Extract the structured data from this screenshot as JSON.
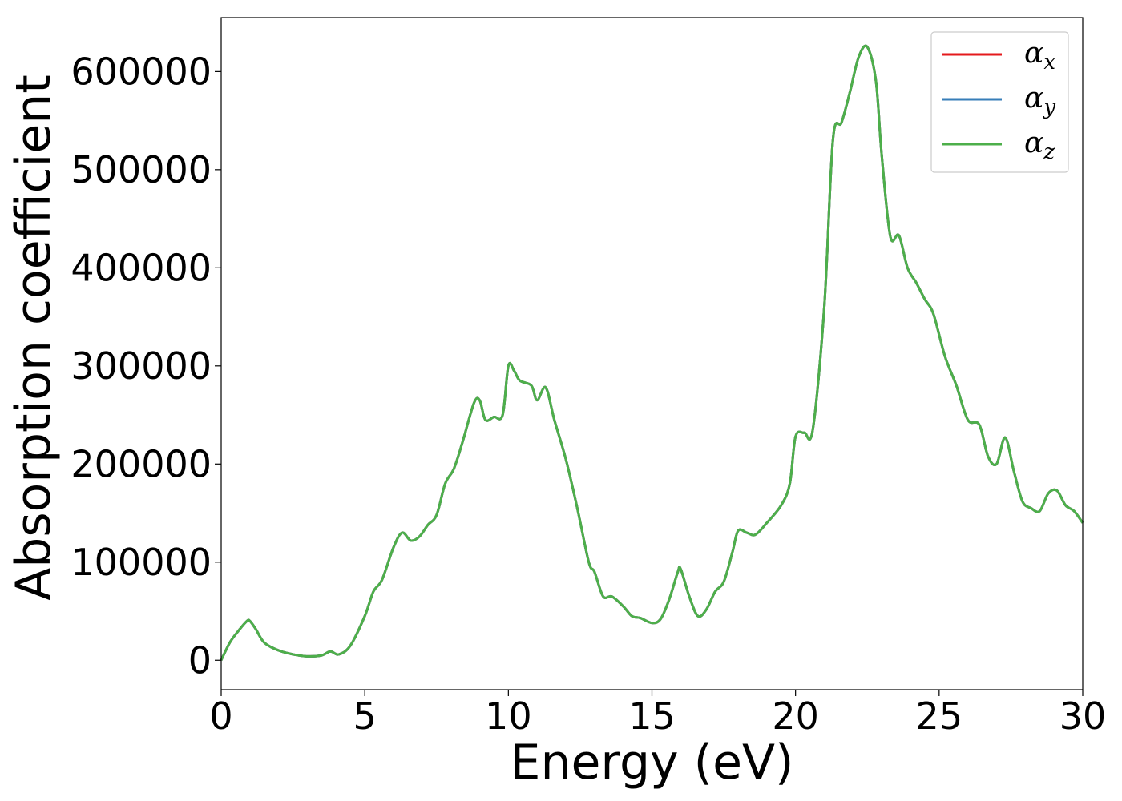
{
  "chart_data": {
    "type": "line",
    "title": "",
    "xlabel": "Energy (eV)",
    "ylabel": "Absorption coefficient",
    "xlim": [
      0,
      30
    ],
    "ylim": [
      -30000,
      655000
    ],
    "xticks": [
      0,
      5,
      10,
      15,
      20,
      25,
      30
    ],
    "yticks": [
      0,
      100000,
      200000,
      300000,
      400000,
      500000,
      600000
    ],
    "grid": false,
    "legend_position": "top-right",
    "x": [
      0,
      0.3,
      0.6,
      0.9,
      1.0,
      1.2,
      1.5,
      2.0,
      2.5,
      3.0,
      3.5,
      3.8,
      4.1,
      4.5,
      5.0,
      5.3,
      5.6,
      6.0,
      6.3,
      6.6,
      6.9,
      7.2,
      7.5,
      7.8,
      8.1,
      8.4,
      8.8,
      9.0,
      9.2,
      9.5,
      9.8,
      10.0,
      10.2,
      10.4,
      10.8,
      11.0,
      11.3,
      11.6,
      12.0,
      12.4,
      12.8,
      13.0,
      13.3,
      13.6,
      14.0,
      14.3,
      14.6,
      15.0,
      15.3,
      15.6,
      15.9,
      16.0,
      16.3,
      16.6,
      16.9,
      17.2,
      17.5,
      17.8,
      18.0,
      18.3,
      18.6,
      19.0,
      19.5,
      19.8,
      20.0,
      20.3,
      20.6,
      21.0,
      21.3,
      21.6,
      21.9,
      22.2,
      22.5,
      22.8,
      23.0,
      23.3,
      23.6,
      23.9,
      24.2,
      24.5,
      24.8,
      25.2,
      25.6,
      26.0,
      26.4,
      26.7,
      27.0,
      27.3,
      27.6,
      27.9,
      28.2,
      28.5,
      28.8,
      29.1,
      29.4,
      29.7,
      30.0
    ],
    "series": [
      {
        "name": "α_x",
        "color": "#e41a1c",
        "values": [
          0,
          18000,
          30000,
          40000,
          40000,
          32000,
          18000,
          10000,
          6000,
          4000,
          5000,
          9000,
          6000,
          15000,
          45000,
          70000,
          82000,
          115000,
          130000,
          122000,
          126000,
          138000,
          148000,
          180000,
          195000,
          222000,
          262000,
          265000,
          245000,
          248000,
          250000,
          300000,
          295000,
          285000,
          280000,
          265000,
          278000,
          245000,
          205000,
          155000,
          100000,
          90000,
          65000,
          65000,
          55000,
          45000,
          43000,
          38000,
          42000,
          62000,
          90000,
          93000,
          65000,
          45000,
          52000,
          70000,
          80000,
          110000,
          132000,
          130000,
          128000,
          140000,
          158000,
          180000,
          228000,
          232000,
          235000,
          360000,
          530000,
          548000,
          580000,
          615000,
          625000,
          590000,
          515000,
          432000,
          433000,
          400000,
          385000,
          368000,
          353000,
          310000,
          280000,
          245000,
          240000,
          208000,
          200000,
          227000,
          193000,
          162000,
          155000,
          152000,
          170000,
          173000,
          158000,
          152000,
          140000
        ]
      },
      {
        "name": "α_y",
        "color": "#377eb8",
        "values": [
          0,
          18000,
          30000,
          40000,
          40000,
          32000,
          18000,
          10000,
          6000,
          4000,
          5000,
          9000,
          6000,
          15000,
          45000,
          70000,
          82000,
          115000,
          130000,
          122000,
          126000,
          138000,
          148000,
          180000,
          195000,
          222000,
          262000,
          265000,
          245000,
          248000,
          250000,
          300000,
          295000,
          285000,
          280000,
          265000,
          278000,
          245000,
          205000,
          155000,
          100000,
          90000,
          65000,
          65000,
          55000,
          45000,
          43000,
          38000,
          42000,
          62000,
          90000,
          93000,
          65000,
          45000,
          52000,
          70000,
          80000,
          110000,
          132000,
          130000,
          128000,
          140000,
          158000,
          180000,
          228000,
          232000,
          235000,
          360000,
          530000,
          548000,
          580000,
          615000,
          625000,
          590000,
          515000,
          432000,
          433000,
          400000,
          385000,
          368000,
          353000,
          310000,
          280000,
          245000,
          240000,
          208000,
          200000,
          227000,
          193000,
          162000,
          155000,
          152000,
          170000,
          173000,
          158000,
          152000,
          140000
        ]
      },
      {
        "name": "α_z",
        "color": "#4daf4a",
        "values": [
          0,
          18000,
          30000,
          40000,
          40000,
          32000,
          18000,
          10000,
          6000,
          4000,
          5000,
          9000,
          6000,
          15000,
          45000,
          70000,
          82000,
          115000,
          130000,
          122000,
          126000,
          138000,
          148000,
          180000,
          195000,
          222000,
          262000,
          265000,
          245000,
          248000,
          250000,
          300000,
          295000,
          285000,
          280000,
          265000,
          278000,
          245000,
          205000,
          155000,
          100000,
          90000,
          65000,
          65000,
          55000,
          45000,
          43000,
          38000,
          42000,
          62000,
          90000,
          93000,
          65000,
          45000,
          52000,
          70000,
          80000,
          110000,
          132000,
          130000,
          128000,
          140000,
          158000,
          180000,
          228000,
          232000,
          235000,
          360000,
          530000,
          548000,
          580000,
          615000,
          625000,
          590000,
          515000,
          432000,
          433000,
          400000,
          385000,
          368000,
          353000,
          310000,
          280000,
          245000,
          240000,
          208000,
          200000,
          227000,
          193000,
          162000,
          155000,
          152000,
          170000,
          173000,
          158000,
          152000,
          140000
        ]
      }
    ],
    "legend": [
      {
        "symbol": "α",
        "sub": "x"
      },
      {
        "symbol": "α",
        "sub": "y"
      },
      {
        "symbol": "α",
        "sub": "z"
      }
    ]
  }
}
